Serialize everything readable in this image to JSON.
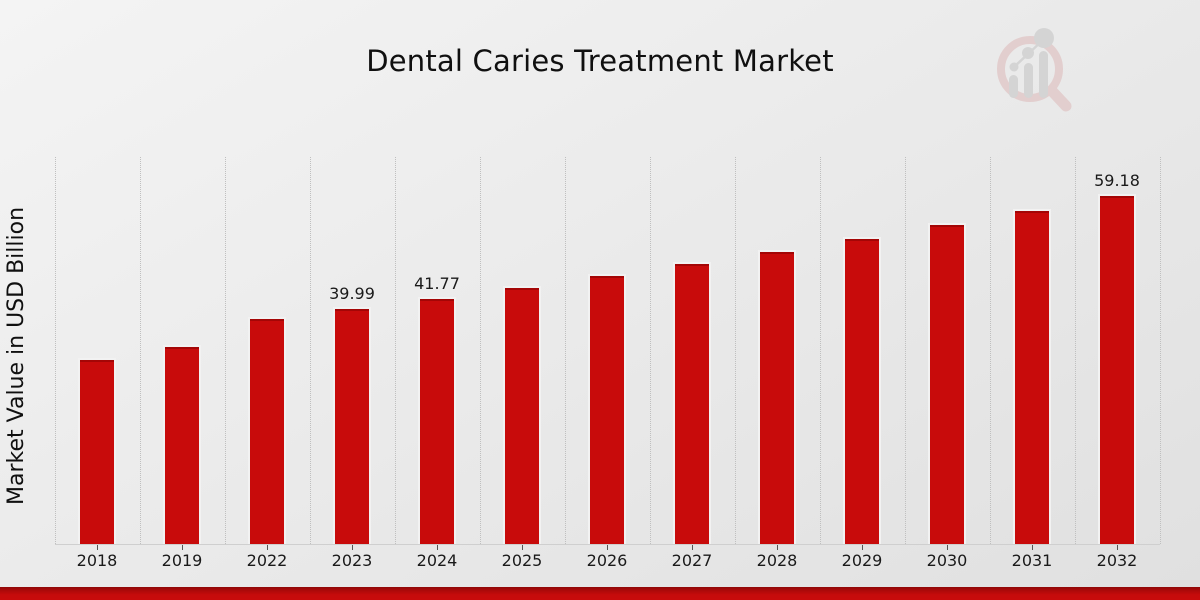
{
  "header": {
    "title": "Dental Caries Treatment Market"
  },
  "watermark": {
    "name": "market-research-future-logo",
    "ring_color": "#ddb8b8",
    "bar_color": "#c3c3c3"
  },
  "colors": {
    "bar": "#c80b0b",
    "bottom_strip": "#c80b0b",
    "background": "#ececec",
    "gridline": "#bfbfbf",
    "text": "#1a1a1a"
  },
  "chart_data": {
    "type": "bar",
    "title": "Dental Caries Treatment Market",
    "xlabel": "",
    "ylabel": "Market Value in USD Billion",
    "categories": [
      "2018",
      "2019",
      "2022",
      "2023",
      "2024",
      "2025",
      "2026",
      "2027",
      "2028",
      "2029",
      "2030",
      "2031",
      "2032"
    ],
    "values": [
      31.5,
      33.7,
      38.3,
      39.99,
      41.77,
      43.6,
      45.6,
      47.6,
      49.7,
      51.9,
      54.2,
      56.7,
      59.18
    ],
    "data_labels": [
      {
        "category": "2023",
        "label": "39.99"
      },
      {
        "category": "2024",
        "label": "41.77"
      },
      {
        "category": "2032",
        "label": "59.18"
      }
    ],
    "bars": [
      {
        "year": "2018",
        "value": 31.5,
        "label": ""
      },
      {
        "year": "2019",
        "value": 33.7,
        "label": ""
      },
      {
        "year": "2022",
        "value": 38.3,
        "label": ""
      },
      {
        "year": "2023",
        "value": 39.99,
        "label": "39.99"
      },
      {
        "year": "2024",
        "value": 41.77,
        "label": "41.77"
      },
      {
        "year": "2025",
        "value": 43.6,
        "label": ""
      },
      {
        "year": "2026",
        "value": 45.6,
        "label": ""
      },
      {
        "year": "2027",
        "value": 47.6,
        "label": ""
      },
      {
        "year": "2028",
        "value": 49.7,
        "label": ""
      },
      {
        "year": "2029",
        "value": 51.9,
        "label": ""
      },
      {
        "year": "2030",
        "value": 54.2,
        "label": ""
      },
      {
        "year": "2031",
        "value": 56.7,
        "label": ""
      },
      {
        "year": "2032",
        "value": 59.18,
        "label": "59.18"
      }
    ],
    "ylim": [
      0,
      66.8
    ],
    "grid": "vertical-dotted",
    "legend": "none",
    "bar_color": "#c80b0b"
  }
}
